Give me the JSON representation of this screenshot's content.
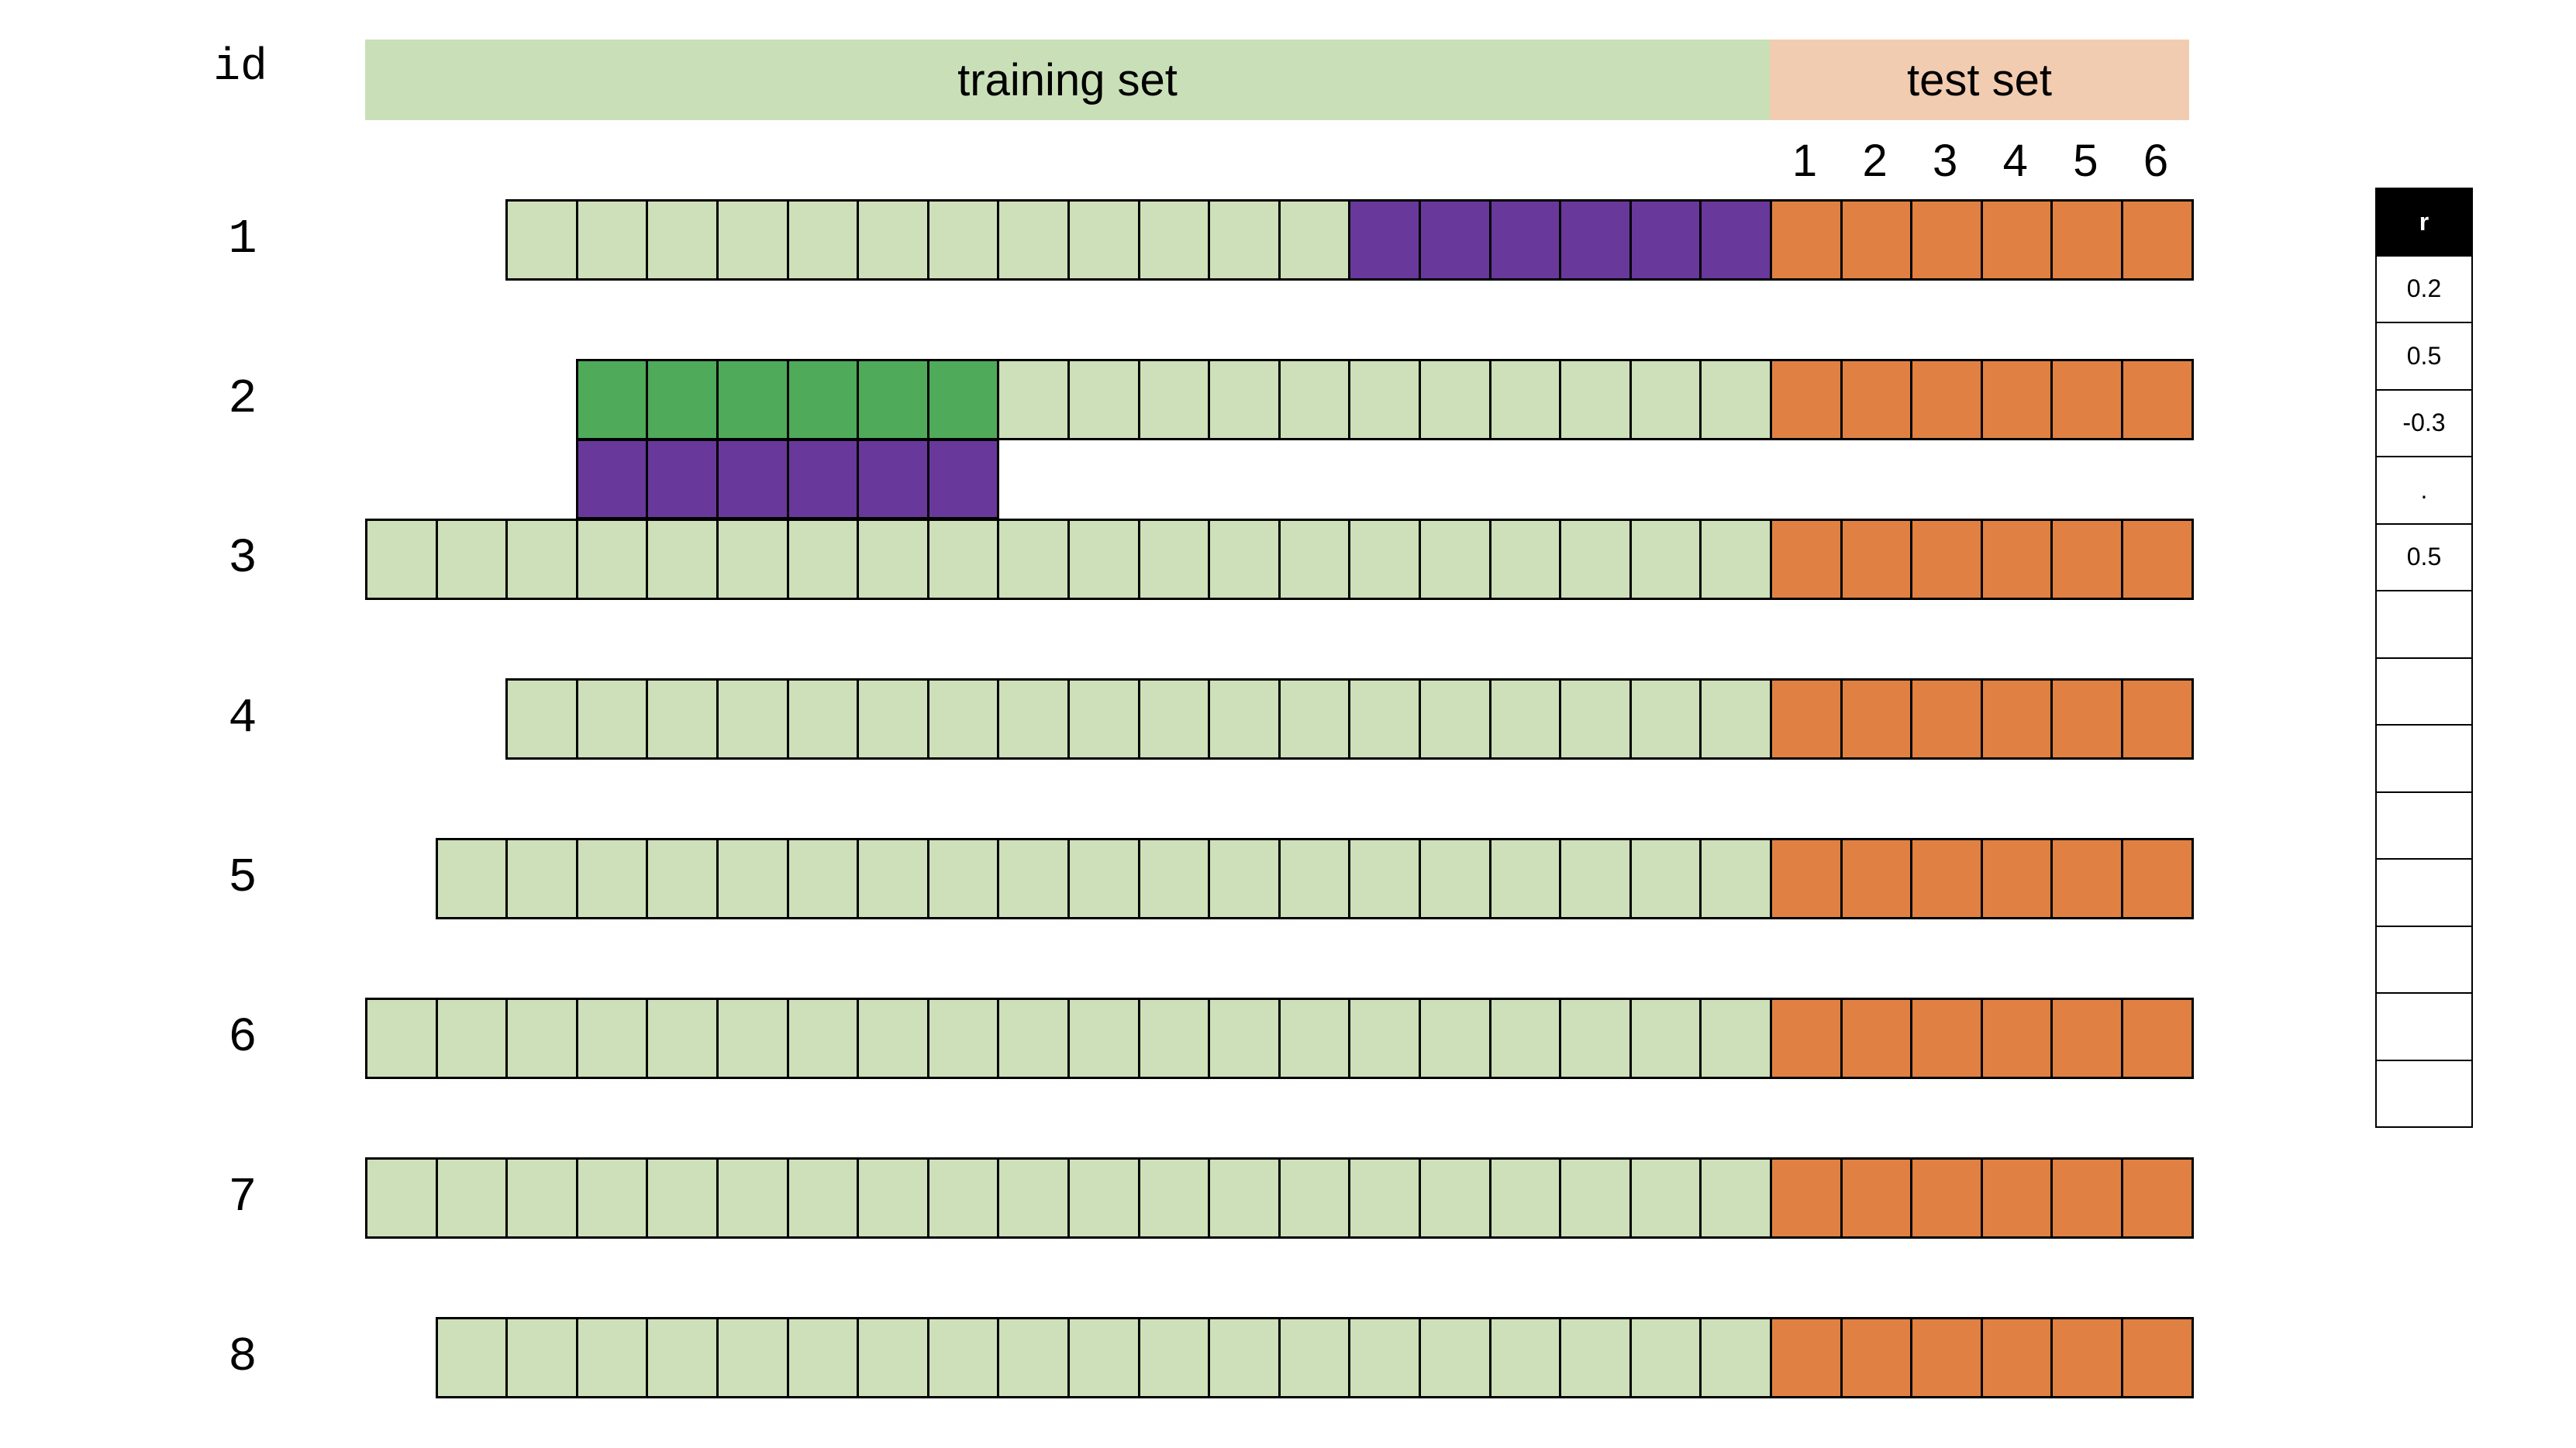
{
  "id_header": "id",
  "bands": {
    "training_label": "training set",
    "training_color": "#c9dfb8",
    "test_label": "test set",
    "test_color": "#f2ccb0"
  },
  "test_steps": [
    "1",
    "2",
    "3",
    "4",
    "5",
    "6"
  ],
  "colors": {
    "train_cell": "#cde0b9",
    "test_cell": "#e08143",
    "purple_cell": "#69389b",
    "green_cell": "#4faa5a"
  },
  "rows": [
    {
      "id": "1",
      "train_cells": 18,
      "highlight": {
        "purple_last": 6
      }
    },
    {
      "id": "2",
      "train_cells": 17,
      "highlight": {
        "green_first": 6,
        "purple_sub_first": 6
      }
    },
    {
      "id": "3",
      "train_cells": 20
    },
    {
      "id": "4",
      "train_cells": 18
    },
    {
      "id": "5",
      "train_cells": 19
    },
    {
      "id": "6",
      "train_cells": 20
    },
    {
      "id": "7",
      "train_cells": 20
    },
    {
      "id": "8",
      "train_cells": 19
    }
  ],
  "test_cells_per_row": 6,
  "r_table": {
    "header": "r",
    "values": [
      "0.2",
      "0.5",
      "-0.3",
      ".",
      "0.5",
      "",
      "",
      "",
      "",
      "",
      "",
      "",
      ""
    ]
  }
}
